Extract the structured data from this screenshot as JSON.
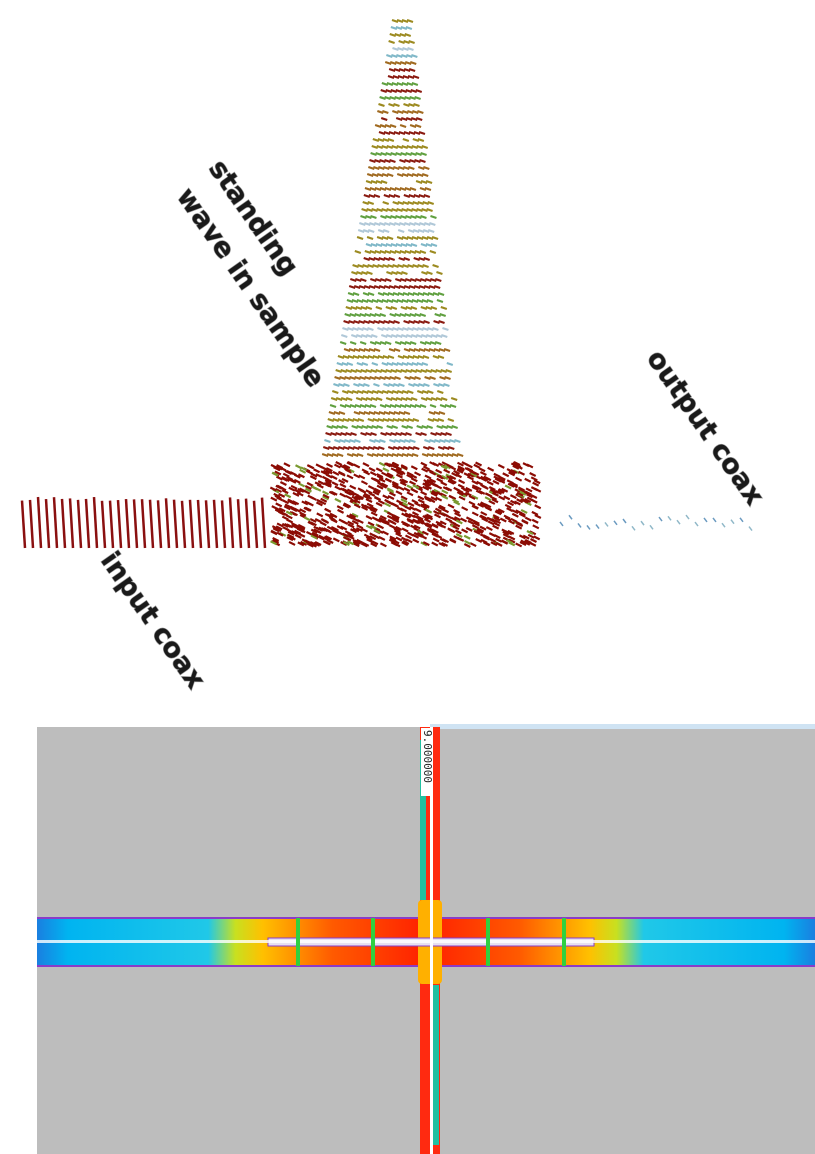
{
  "labels": {
    "sample": [
      "standing",
      "wave in sample"
    ],
    "output": "output coax",
    "input": "input coax"
  },
  "scale_label": "9.000000"
}
